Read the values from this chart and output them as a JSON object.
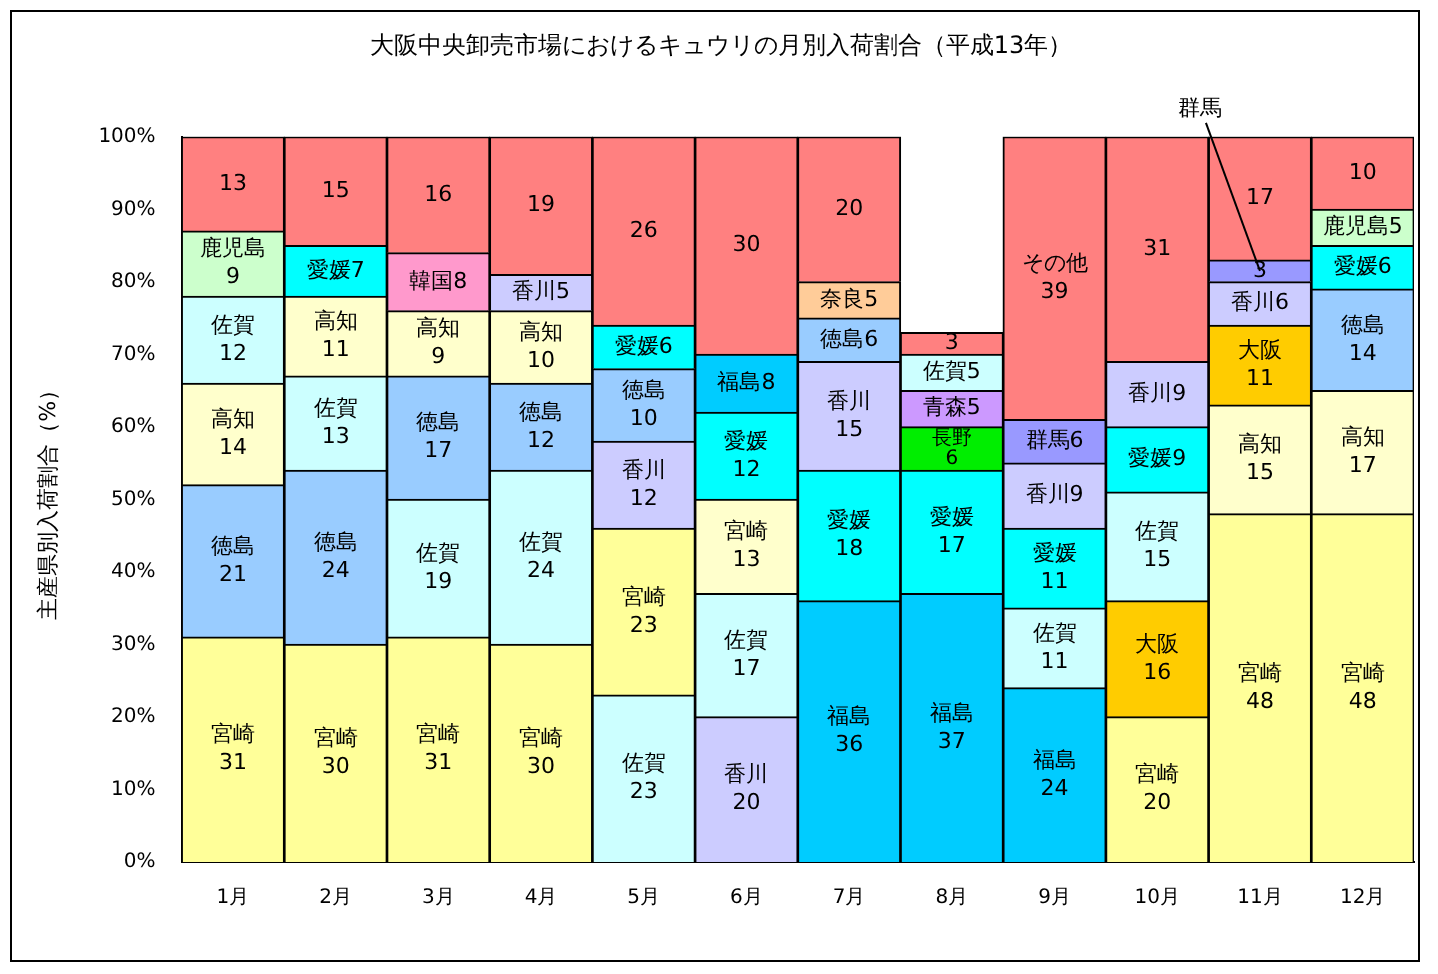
{
  "chart_data": {
    "type": "bar",
    "title": "大阪中央卸売市場におけるキュウリの月別入荷割合（平成13年）",
    "ylabel": "主産県別入荷割合（%）",
    "categories": [
      "1月",
      "2月",
      "3月",
      "4月",
      "5月",
      "6月",
      "7月",
      "8月",
      "9月",
      "10月",
      "11月",
      "12月"
    ],
    "stacked": true,
    "grid": false,
    "legend": false,
    "ylim": [
      0,
      100
    ],
    "yticks": [
      {
        "value": 0,
        "label": "0%"
      },
      {
        "value": 10,
        "label": "10%"
      },
      {
        "value": 20,
        "label": "20%"
      },
      {
        "value": 30,
        "label": "30%"
      },
      {
        "value": 40,
        "label": "40%"
      },
      {
        "value": 50,
        "label": "50%"
      },
      {
        "value": 60,
        "label": "60%"
      },
      {
        "value": 70,
        "label": "70%"
      },
      {
        "value": 80,
        "label": "80%"
      },
      {
        "value": 90,
        "label": "90%"
      },
      {
        "value": 100,
        "label": "100%"
      }
    ],
    "series": [
      {
        "values": [
          31,
          30,
          31,
          30,
          23,
          20,
          36,
          37,
          24,
          20,
          48,
          48
        ],
        "colors": [
          "#ffff99",
          "#ffff99",
          "#ffff99",
          "#ffff99",
          "#ccffff",
          "#ccccff",
          "#00ccff",
          "#00ccff",
          "#00ccff",
          "#ffff99",
          "#ffff99",
          "#ffff99"
        ],
        "value_labels": [
          "宮崎\n31",
          "宮崎\n30",
          "宮崎\n31",
          "宮崎\n30",
          "佐賀\n23",
          "香川\n20",
          "福島\n36",
          "福島\n37",
          "福島\n24",
          "宮崎\n20",
          "宮崎\n48",
          "宮崎\n48"
        ]
      },
      {
        "values": [
          21,
          24,
          19,
          24,
          23,
          17,
          18,
          17,
          11,
          16,
          15,
          17
        ],
        "colors": [
          "#99ccff",
          "#99ccff",
          "#ccffff",
          "#ccffff",
          "#ffff99",
          "#ccffff",
          "#00ffff",
          "#00ffff",
          "#ccffff",
          "#ffcc00",
          "#ffffcc",
          "#ffffcc"
        ],
        "value_labels": [
          "徳島\n21",
          "徳島\n24",
          "佐賀\n19",
          "佐賀\n24",
          "宮崎\n23",
          "佐賀\n17",
          "愛媛\n18",
          "愛媛\n17",
          "佐賀\n11",
          "大阪\n16",
          "高知\n15",
          "高知\n17"
        ]
      },
      {
        "values": [
          14,
          13,
          17,
          12,
          12,
          13,
          15,
          6,
          11,
          15,
          11,
          14
        ],
        "colors": [
          "#ffffcc",
          "#ccffff",
          "#99ccff",
          "#99ccff",
          "#ccccff",
          "#ffffcc",
          "#ccccff",
          "#00ee00",
          "#00ffff",
          "#ccffff",
          "#ffcc00",
          "#99ccff"
        ],
        "value_labels": [
          "高知\n14",
          "佐賀\n13",
          "徳島\n17",
          "徳島\n12",
          "香川\n12",
          "宮崎\n13",
          "香川\n15",
          "長野\n6",
          "愛媛\n11",
          "佐賀\n15",
          "大阪\n11",
          "徳島\n14"
        ]
      },
      {
        "values": [
          12,
          11,
          9,
          10,
          10,
          12,
          6,
          5,
          9,
          9,
          6,
          6
        ],
        "colors": [
          "#ccffff",
          "#ffffcc",
          "#ffffcc",
          "#ffffcc",
          "#99ccff",
          "#00ffff",
          "#99ccff",
          "#cc99ff",
          "#ccccff",
          "#00ffff",
          "#ccccff",
          "#00ffff"
        ],
        "value_labels": [
          "佐賀\n12",
          "高知\n11",
          "高知\n9",
          "高知\n10",
          "徳島\n10",
          "愛媛\n12",
          "徳島6",
          "青森5",
          "香川9",
          "愛媛9",
          "香川6",
          "愛媛6"
        ]
      },
      {
        "values": [
          9,
          7,
          8,
          5,
          6,
          8,
          5,
          5,
          6,
          9,
          3,
          5
        ],
        "colors": [
          "#ccffcc",
          "#00ffff",
          "#ff99cc",
          "#ccccff",
          "#00ffff",
          "#00ccff",
          "#ffcc99",
          "#ccffff",
          "#9999ff",
          "#ccccff",
          "#9999ff",
          "#ccffcc"
        ],
        "value_labels": [
          "鹿児島\n9",
          "愛媛7",
          "韓国8",
          "香川5",
          "愛媛6",
          "福島8",
          "奈良5",
          "佐賀5",
          "群馬6",
          "香川9",
          "3",
          "鹿児島5"
        ]
      },
      {
        "values": [
          13,
          15,
          16,
          19,
          26,
          30,
          20,
          3,
          39,
          31,
          17,
          10
        ],
        "colors": [
          "#ff8080",
          "#ff8080",
          "#ff8080",
          "#ff8080",
          "#ff8080",
          "#ff8080",
          "#ff8080",
          "#ff8080",
          "#ff8080",
          "#ff8080",
          "#ff8080",
          "#ff8080"
        ],
        "value_labels": [
          "13",
          "15",
          "16",
          "19",
          "26",
          "30",
          "20",
          "3",
          "その他\n39",
          "31",
          "17",
          "10"
        ]
      }
    ],
    "annotations": [
      {
        "text": "群馬",
        "x": "11月",
        "y": 81.5
      }
    ]
  }
}
